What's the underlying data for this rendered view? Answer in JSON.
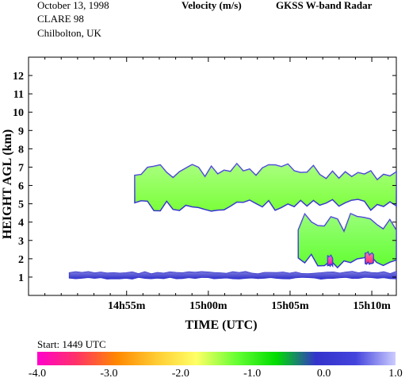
{
  "header": {
    "date": "October  13, 1998",
    "campaign": "CLARE 98",
    "location": "Chilbolton, UK",
    "quantity": "Velocity (m/s)",
    "instrument": "GKSS  W-band Radar"
  },
  "chart_data": {
    "type": "heatmap",
    "title": "Velocity (m/s)",
    "xlabel": "TIME (UTC)",
    "ylabel": "HEIGHT AGL (km)",
    "xlim_minutes_after_1449": [
      0,
      22.5
    ],
    "ylim_km": [
      0,
      13
    ],
    "x_ticks": [
      {
        "label": "14h55m",
        "minute": 6
      },
      {
        "label": "15h00m",
        "minute": 11
      },
      {
        "label": "15h05m",
        "minute": 16
      },
      {
        "label": "15h10m",
        "minute": 21
      }
    ],
    "y_ticks": [
      "1",
      "2",
      "3",
      "4",
      "5",
      "6",
      "7",
      "8",
      "9",
      "10",
      "11",
      "12"
    ],
    "colorbar": {
      "range": [
        -4.0,
        1.0
      ],
      "tick_labels": [
        "-4.0",
        "-3.0",
        "-2.0",
        "-1.0",
        "0.0",
        "1.0"
      ],
      "colors": [
        "#ff00cc",
        "#ff3366",
        "#ff8800",
        "#ffcc33",
        "#ffff66",
        "#66ff33",
        "#00dd00",
        "#3333cc",
        "#4444dd",
        "#ccccff"
      ]
    },
    "echo_regions": [
      {
        "feature": "surface echo layer",
        "x_range_min": [
          2.5,
          22.5
        ],
        "height_km": [
          0.9,
          1.3
        ],
        "velocity_ms": -0.1
      },
      {
        "feature": "mid-level cloud layer",
        "x_range_min": [
          6.5,
          22.5
        ],
        "height_km": [
          4.6,
          7.2
        ],
        "velocity_ms": -1.3
      },
      {
        "feature": "fall streak",
        "x_range_min": [
          16.5,
          22.5
        ],
        "height_km": [
          1.5,
          4.5
        ],
        "velocity_ms": -1.2
      },
      {
        "feature": "precipitation shaft",
        "x_range_min": [
          18.3,
          18.6
        ],
        "height_km": [
          1.6,
          2.2
        ],
        "velocity_ms": -3.8
      },
      {
        "feature": "precipitation shaft",
        "x_range_min": [
          20.6,
          21.1
        ],
        "height_km": [
          1.7,
          2.4
        ],
        "velocity_ms": -3.5
      }
    ]
  },
  "footer": {
    "start_label": "Start: 1449 UTC"
  }
}
